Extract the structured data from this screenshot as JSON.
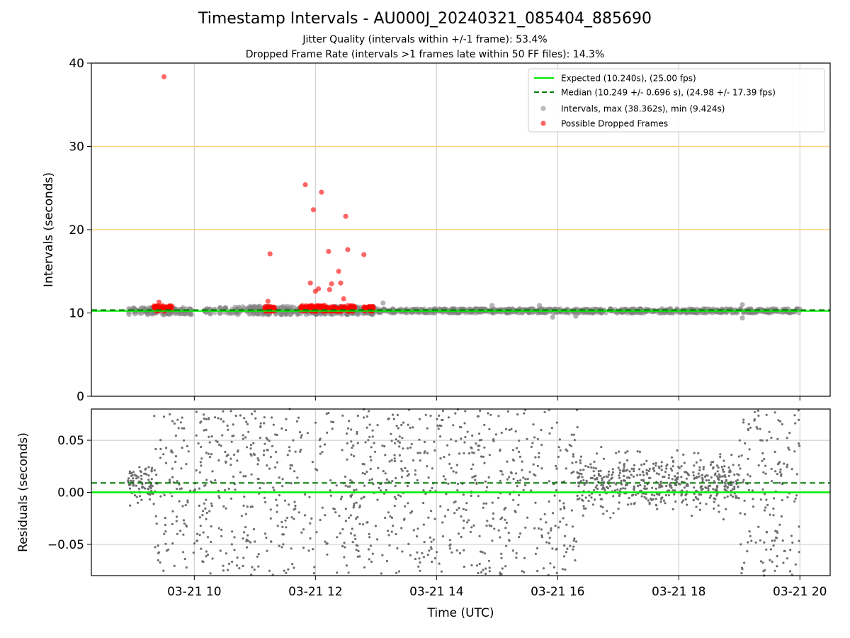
{
  "figure": {
    "title": "Timestamp Intervals - AU000J_20240321_085404_885690",
    "subtitle_jitter": "Jitter Quality (intervals within +/-1 frame): 53.4%",
    "subtitle_dropped": "Dropped Frame Rate (intervals >1 frames late within 50 FF files): 14.3%"
  },
  "colors": {
    "expected": "#00ee00",
    "median": "#007a00",
    "intervals": "#808080",
    "dropped": "#ff0000",
    "threshold": "#ffd27a",
    "grid": "#c8c8c8"
  },
  "chart_data": [
    {
      "type": "scatter",
      "id": "intervals-panel",
      "ylabel": "Intervals (seconds)",
      "ylim": [
        0,
        40
      ],
      "yticks": [
        0,
        10,
        20,
        30,
        40
      ],
      "xlim_hours_utc": [
        8.3,
        20.5
      ],
      "grid": "vertical at x ticks",
      "threshold_lines": [
        20,
        30
      ],
      "legend_position": "top-right",
      "series": [
        {
          "name": "Expected (10.240s), (25.00 fps)",
          "kind": "line",
          "y": 10.24,
          "style": "solid"
        },
        {
          "name": "Median (10.249 +/- 0.696 s), (24.98 +/- 17.39 fps)",
          "kind": "line",
          "y": 10.249,
          "style": "dashed"
        },
        {
          "name": "Intervals, max (38.362s), min (9.424s)",
          "kind": "band",
          "band": [
            {
              "x_start": "2024-03-21 08:54",
              "x_end": "2024-03-21 09:57",
              "y_min": 9.8,
              "y_max": 10.7
            },
            {
              "x_start": "2024-03-21 10:10",
              "x_end": "2024-03-21 13:00",
              "y_min": 9.8,
              "y_max": 10.8
            },
            {
              "x_start": "2024-03-21 13:00",
              "x_end": "2024-03-21 20:00",
              "y_min": 10.0,
              "y_max": 10.5
            }
          ],
          "outliers": [
            {
              "x": "2024-03-21 13:07",
              "y": 11.2
            },
            {
              "x": "2024-03-21 14:55",
              "y": 10.9
            },
            {
              "x": "2024-03-21 15:42",
              "y": 10.9
            },
            {
              "x": "2024-03-21 15:55",
              "y": 9.5
            },
            {
              "x": "2024-03-21 16:18",
              "y": 9.6
            },
            {
              "x": "2024-03-21 19:03",
              "y": 11.0
            },
            {
              "x": "2024-03-21 19:03",
              "y": 9.4
            }
          ]
        },
        {
          "name": "Possible Dropped Frames",
          "kind": "scatter",
          "points": [
            {
              "x": "2024-03-21 09:30",
              "y": 38.36
            },
            {
              "x": "2024-03-21 09:25",
              "y": 11.3
            },
            {
              "x": "2024-03-21 11:15",
              "y": 17.1
            },
            {
              "x": "2024-03-21 11:13",
              "y": 11.4
            },
            {
              "x": "2024-03-21 11:50",
              "y": 25.4
            },
            {
              "x": "2024-03-21 12:06",
              "y": 24.5
            },
            {
              "x": "2024-03-21 11:58",
              "y": 22.4
            },
            {
              "x": "2024-03-21 12:30",
              "y": 21.6
            },
            {
              "x": "2024-03-21 12:13",
              "y": 17.4
            },
            {
              "x": "2024-03-21 12:32",
              "y": 17.6
            },
            {
              "x": "2024-03-21 12:48",
              "y": 17.0
            },
            {
              "x": "2024-03-21 12:23",
              "y": 15.0
            },
            {
              "x": "2024-03-21 11:55",
              "y": 13.6
            },
            {
              "x": "2024-03-21 12:16",
              "y": 13.5
            },
            {
              "x": "2024-03-21 12:25",
              "y": 13.6
            },
            {
              "x": "2024-03-21 12:03",
              "y": 12.9
            },
            {
              "x": "2024-03-21 12:00",
              "y": 12.6
            },
            {
              "x": "2024-03-21 12:14",
              "y": 12.8
            },
            {
              "x": "2024-03-21 12:28",
              "y": 11.7
            }
          ],
          "bands": [
            {
              "x_start": "2024-03-21 09:20",
              "x_end": "2024-03-21 09:38",
              "y_min": 10.2,
              "y_max": 10.9
            },
            {
              "x_start": "2024-03-21 11:10",
              "x_end": "2024-03-21 11:20",
              "y_min": 10.2,
              "y_max": 10.8
            },
            {
              "x_start": "2024-03-21 11:45",
              "x_end": "2024-03-21 12:40",
              "y_min": 10.2,
              "y_max": 10.9
            },
            {
              "x_start": "2024-03-21 12:48",
              "x_end": "2024-03-21 12:58",
              "y_min": 10.2,
              "y_max": 10.8
            }
          ]
        }
      ]
    },
    {
      "type": "scatter",
      "id": "residuals-panel",
      "xlabel": "Time (UTC)",
      "ylabel": "Residuals (seconds)",
      "ylim": [
        -0.08,
        0.08
      ],
      "yticks": [
        0.05,
        0.0,
        -0.05
      ],
      "ytick_labels": [
        "0.05",
        "0.00",
        "−0.05"
      ],
      "xlim_hours_utc": [
        8.3,
        20.5
      ],
      "xticks": [
        "2024-03-21 10:00",
        "2024-03-21 12:00",
        "2024-03-21 14:00",
        "2024-03-21 16:00",
        "2024-03-21 18:00",
        "2024-03-21 20:00"
      ],
      "xtick_labels": [
        "03-21 10",
        "03-21 12",
        "03-21 14",
        "03-21 16",
        "03-21 18",
        "03-21 20"
      ],
      "grid": "both",
      "series": [
        {
          "name": "Expected",
          "kind": "line",
          "y": 0.0,
          "style": "solid"
        },
        {
          "name": "Median",
          "kind": "line",
          "y": 0.009,
          "style": "dashed"
        },
        {
          "name": "Residuals",
          "kind": "scatter-cloud",
          "segments": [
            {
              "x_start": "2024-03-21 08:54",
              "x_end": "2024-03-21 09:20",
              "y_min": -0.018,
              "y_max": 0.042,
              "density": "dense"
            },
            {
              "x_start": "2024-03-21 09:20",
              "x_end": "2024-03-21 11:45",
              "y_min": -0.08,
              "y_max": 0.08,
              "density": "medium"
            },
            {
              "x_start": "2024-03-21 11:45",
              "x_end": "2024-03-21 12:20",
              "y_min": -0.08,
              "y_max": 0.08,
              "density": "sparse"
            },
            {
              "x_start": "2024-03-21 12:20",
              "x_end": "2024-03-21 16:20",
              "y_min": -0.08,
              "y_max": 0.08,
              "density": "medium"
            },
            {
              "x_start": "2024-03-21 16:20",
              "x_end": "2024-03-21 19:00",
              "y_min": -0.035,
              "y_max": 0.045,
              "density": "dense"
            },
            {
              "x_start": "2024-03-21 19:00",
              "x_end": "2024-03-21 20:00",
              "y_min": -0.08,
              "y_max": 0.08,
              "density": "medium"
            }
          ]
        }
      ]
    }
  ]
}
